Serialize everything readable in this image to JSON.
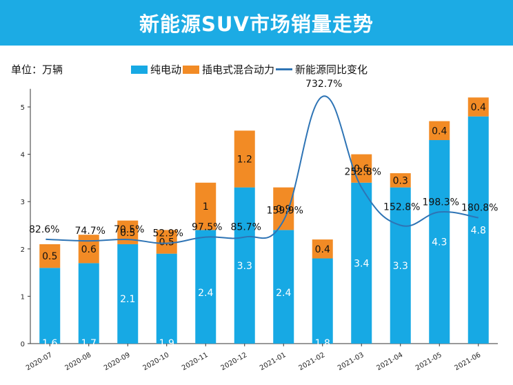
{
  "banner": {
    "title": "新能源SUV市场销量走势"
  },
  "unit_label": "单位：万辆",
  "colors": {
    "banner": "#1cabe4",
    "bev": "#17a9e4",
    "phev": "#f28b25",
    "line": "#2e74b5",
    "axis": "#333333"
  },
  "chart_data": {
    "type": "bar",
    "stacked": true,
    "title": "新能源SUV市场销量走势",
    "ylabel": "万辆",
    "ylim": [
      0,
      5.5
    ],
    "yticks": [
      0,
      1,
      2,
      3,
      4,
      5
    ],
    "categories": [
      "2020-07",
      "2020-08",
      "2020-09",
      "2020-10",
      "2020-11",
      "2020-12",
      "2021-01",
      "2021-02",
      "2021-03",
      "2021-04",
      "2021-05",
      "2021-06"
    ],
    "series": [
      {
        "name": "纯电动",
        "values": [
          1.6,
          1.7,
          2.1,
          1.9,
          2.4,
          3.3,
          2.4,
          1.8,
          3.4,
          3.3,
          4.3,
          4.8
        ]
      },
      {
        "name": "插电式混合动力",
        "values": [
          0.5,
          0.6,
          0.5,
          0.5,
          1.0,
          1.2,
          0.9,
          0.4,
          0.6,
          0.3,
          0.4,
          0.4
        ]
      }
    ],
    "line_series": {
      "name": "新能源同比变化",
      "values": [
        82.6,
        74.7,
        70.5,
        52.9,
        97.5,
        85.7,
        159.9,
        732.7,
        252.8,
        152.8,
        198.3,
        180.8
      ],
      "labels": [
        "82.6%",
        "74.7%",
        "70.5%",
        "52.9%",
        "97.5%",
        "85.7%",
        "159.9%",
        "732.7%",
        "252.8%",
        "152.8%",
        "198.3%",
        "180.8%"
      ],
      "curve_y": [
        2.2,
        2.17,
        2.2,
        2.12,
        2.25,
        2.25,
        2.6,
        5.22,
        3.3,
        2.5,
        2.78,
        2.66
      ]
    },
    "legend": [
      "纯电动",
      "插电式混合动力",
      "新能源同比变化"
    ]
  }
}
